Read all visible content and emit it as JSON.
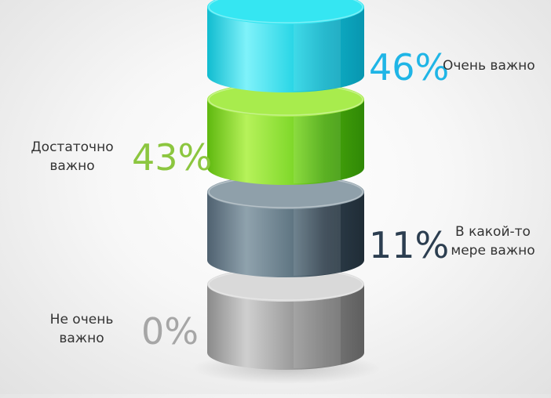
{
  "chart_data": {
    "type": "stacked-cylinder",
    "categories": [
      "Не очень важно",
      "В какой-то мере важно",
      "Достаточно важно",
      "Очень важно"
    ],
    "values": [
      0,
      11,
      43,
      46
    ],
    "value_labels": [
      "0%",
      "11%",
      "43%",
      "46%"
    ],
    "label_lines": [
      [
        "Не очень",
        "важно"
      ],
      [
        "В какой-то",
        "мере важно"
      ],
      [
        "Достаточно",
        "важно"
      ],
      [
        "Очень важно"
      ]
    ],
    "colors": [
      "#a6a6a6",
      "#5d6d78",
      "#7ed321",
      "#22d8e8"
    ],
    "value_label_colors": [
      "#a6a6a6",
      "#2c3e50",
      "#8cc63f",
      "#1fb5e6"
    ],
    "order": "bottom-to-top"
  }
}
